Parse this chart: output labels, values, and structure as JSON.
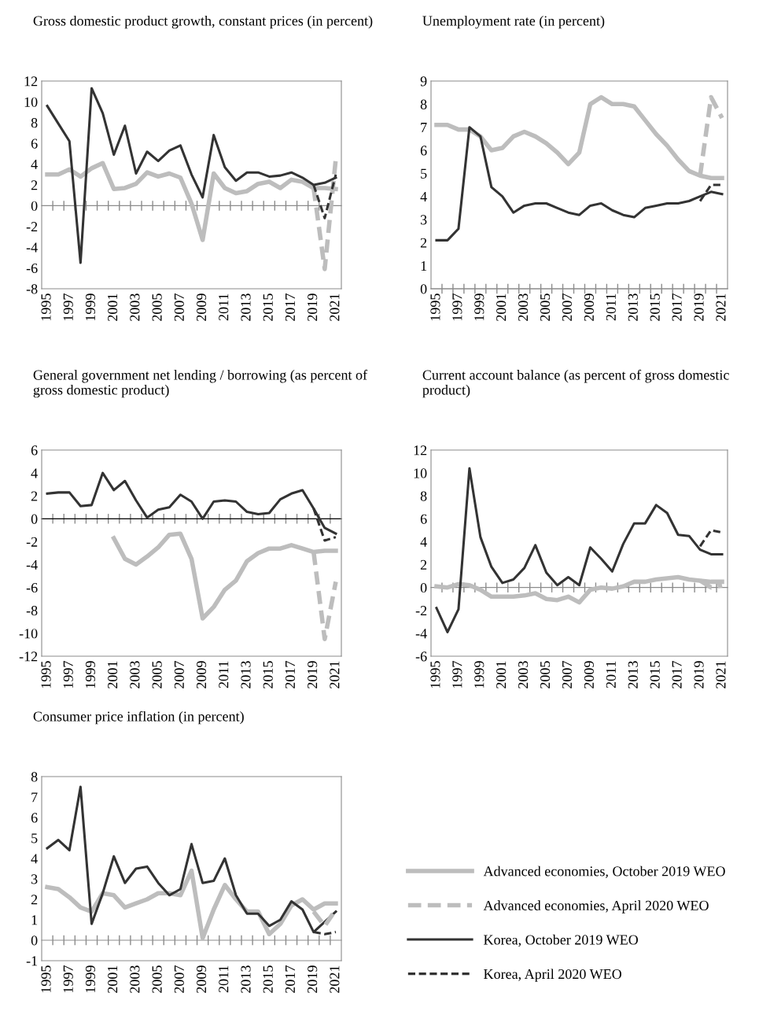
{
  "chart_data": [
    {
      "type": "line",
      "title": "Gross domestic product growth, constant prices (in percent)",
      "categories": [
        "1995",
        null,
        "1997",
        null,
        "1999",
        null,
        "2001",
        null,
        "2003",
        null,
        "2005",
        null,
        "2007",
        null,
        "2009",
        null,
        "2011",
        null,
        "2013",
        null,
        "2015",
        null,
        "2017",
        null,
        "2019",
        null,
        "2021"
      ],
      "ylim": [
        -8,
        12
      ],
      "yticks": [
        -8,
        -6,
        -4,
        -2,
        0,
        2,
        4,
        6,
        8,
        10,
        12
      ],
      "series": [
        {
          "color": "#bdbdbd",
          "line_style": "solid",
          "values": [
            3.0,
            3.0,
            3.5,
            2.8,
            3.6,
            4.1,
            1.6,
            1.7,
            2.1,
            3.2,
            2.8,
            3.1,
            2.7,
            0.2,
            -3.3,
            3.1,
            1.7,
            1.2,
            1.4,
            2.1,
            2.3,
            1.7,
            2.5,
            2.3,
            1.7,
            1.7,
            1.6
          ]
        },
        {
          "color": "#bdbdbd",
          "line_style": "dashed",
          "values": [
            null,
            null,
            null,
            null,
            null,
            null,
            null,
            null,
            null,
            null,
            null,
            null,
            null,
            null,
            null,
            null,
            null,
            null,
            null,
            null,
            null,
            null,
            null,
            null,
            1.7,
            -6.1,
            4.5
          ]
        },
        {
          "color": "#333333",
          "line_style": "solid",
          "values": [
            9.6,
            7.9,
            6.2,
            -5.5,
            11.3,
            8.9,
            4.9,
            7.7,
            3.1,
            5.2,
            4.3,
            5.3,
            5.8,
            3.0,
            0.8,
            6.8,
            3.7,
            2.4,
            3.2,
            3.2,
            2.8,
            2.9,
            3.2,
            2.7,
            2.0,
            2.2,
            2.7
          ]
        },
        {
          "color": "#333333",
          "line_style": "dashed",
          "values": [
            null,
            null,
            null,
            null,
            null,
            null,
            null,
            null,
            null,
            null,
            null,
            null,
            null,
            null,
            null,
            null,
            null,
            null,
            null,
            null,
            null,
            null,
            null,
            null,
            2.0,
            -1.2,
            3.0
          ]
        }
      ]
    },
    {
      "type": "line",
      "title": "Unemployment rate (in percent)",
      "categories": [
        "1995",
        null,
        "1997",
        null,
        "1999",
        null,
        "2001",
        null,
        "2003",
        null,
        "2005",
        null,
        "2007",
        null,
        "2009",
        null,
        "2011",
        null,
        "2013",
        null,
        "2015",
        null,
        "2017",
        null,
        "2019",
        null,
        "2021"
      ],
      "ylim": [
        0,
        9
      ],
      "yticks": [
        0,
        1,
        2,
        3,
        4,
        5,
        6,
        7,
        8,
        9
      ],
      "series": [
        {
          "color": "#bdbdbd",
          "line_style": "solid",
          "values": [
            7.1,
            7.1,
            6.9,
            6.9,
            6.6,
            6.0,
            6.1,
            6.6,
            6.8,
            6.6,
            6.3,
            5.9,
            5.4,
            5.9,
            8.0,
            8.3,
            8.0,
            8.0,
            7.9,
            7.3,
            6.7,
            6.2,
            5.6,
            5.1,
            4.9,
            4.8,
            4.8
          ]
        },
        {
          "color": "#bdbdbd",
          "line_style": "dashed",
          "values": [
            null,
            null,
            null,
            null,
            null,
            null,
            null,
            null,
            null,
            null,
            null,
            null,
            null,
            null,
            null,
            null,
            null,
            null,
            null,
            null,
            null,
            null,
            null,
            null,
            4.9,
            8.3,
            7.4
          ]
        },
        {
          "color": "#333333",
          "line_style": "solid",
          "values": [
            2.1,
            2.1,
            2.6,
            7.0,
            6.6,
            4.4,
            4.0,
            3.3,
            3.6,
            3.7,
            3.7,
            3.5,
            3.3,
            3.2,
            3.6,
            3.7,
            3.4,
            3.2,
            3.1,
            3.5,
            3.6,
            3.7,
            3.7,
            3.8,
            4.0,
            4.2,
            4.1
          ]
        },
        {
          "color": "#333333",
          "line_style": "dashed",
          "values": [
            null,
            null,
            null,
            null,
            null,
            null,
            null,
            null,
            null,
            null,
            null,
            null,
            null,
            null,
            null,
            null,
            null,
            null,
            null,
            null,
            null,
            null,
            null,
            null,
            3.8,
            4.5,
            4.5
          ]
        }
      ]
    },
    {
      "type": "line",
      "title": "General government net lending / borrowing (as percent of gross domestic product)",
      "categories": [
        "1995",
        null,
        "1997",
        null,
        "1999",
        null,
        "2001",
        null,
        "2003",
        null,
        "2005",
        null,
        "2007",
        null,
        "2009",
        null,
        "2011",
        null,
        "2013",
        null,
        "2015",
        null,
        "2017",
        null,
        "2019",
        null,
        "2021"
      ],
      "ylim": [
        -12,
        6
      ],
      "yticks": [
        -12,
        -10,
        -8,
        -6,
        -4,
        -2,
        0,
        2,
        4,
        6
      ],
      "series": [
        {
          "color": "#bdbdbd",
          "line_style": "solid",
          "values": [
            null,
            null,
            null,
            null,
            null,
            null,
            -1.7,
            -3.5,
            -4.0,
            -3.3,
            -2.5,
            -1.4,
            -1.3,
            -3.5,
            -8.7,
            -7.7,
            -6.2,
            -5.4,
            -3.7,
            -3.0,
            -2.6,
            -2.6,
            -2.3,
            -2.6,
            -2.9,
            -2.8,
            -2.8
          ]
        },
        {
          "color": "#bdbdbd",
          "line_style": "dashed",
          "values": [
            null,
            null,
            null,
            null,
            null,
            null,
            null,
            null,
            null,
            null,
            null,
            null,
            null,
            null,
            null,
            null,
            null,
            null,
            null,
            null,
            null,
            null,
            null,
            null,
            -2.9,
            -10.5,
            -5.5
          ]
        },
        {
          "color": "#333333",
          "line_style": "solid",
          "values": [
            2.2,
            2.3,
            2.3,
            1.1,
            1.2,
            4.0,
            2.5,
            3.3,
            1.6,
            0.1,
            0.8,
            1.0,
            2.1,
            1.5,
            0.0,
            1.5,
            1.6,
            1.5,
            0.6,
            0.4,
            0.5,
            1.7,
            2.2,
            2.5,
            0.9,
            -0.8,
            -1.3
          ]
        },
        {
          "color": "#333333",
          "line_style": "dashed",
          "values": [
            null,
            null,
            null,
            null,
            null,
            null,
            null,
            null,
            null,
            null,
            null,
            null,
            null,
            null,
            null,
            null,
            null,
            null,
            null,
            null,
            null,
            null,
            null,
            null,
            0.9,
            -1.9,
            -1.6
          ]
        }
      ]
    },
    {
      "type": "line",
      "title": "Current account balance (as percent of gross domestic product)",
      "categories": [
        "1995",
        null,
        "1997",
        null,
        "1999",
        null,
        "2001",
        null,
        "2003",
        null,
        "2005",
        null,
        "2007",
        null,
        "2009",
        null,
        "2011",
        null,
        "2013",
        null,
        "2015",
        null,
        "2017",
        null,
        "2019",
        null,
        "2021"
      ],
      "ylim": [
        -6,
        12
      ],
      "yticks": [
        -6,
        -4,
        -2,
        0,
        2,
        4,
        6,
        8,
        10,
        12
      ],
      "series": [
        {
          "color": "#bdbdbd",
          "line_style": "solid",
          "values": [
            0.1,
            0.0,
            0.3,
            0.2,
            -0.2,
            -0.8,
            -0.8,
            -0.8,
            -0.7,
            -0.5,
            -1.0,
            -1.1,
            -0.8,
            -1.3,
            -0.2,
            0.0,
            -0.1,
            0.1,
            0.5,
            0.5,
            0.7,
            0.8,
            0.9,
            0.7,
            0.6,
            0.5,
            0.5
          ]
        },
        {
          "color": "#bdbdbd",
          "line_style": "dashed",
          "values": [
            null,
            null,
            null,
            null,
            null,
            null,
            null,
            null,
            null,
            null,
            null,
            null,
            null,
            null,
            null,
            null,
            null,
            null,
            null,
            null,
            null,
            null,
            null,
            null,
            0.6,
            0.0,
            0.2
          ]
        },
        {
          "color": "#333333",
          "line_style": "solid",
          "values": [
            -1.8,
            -3.9,
            -1.9,
            10.4,
            4.4,
            1.8,
            0.4,
            0.7,
            1.7,
            3.7,
            1.3,
            0.2,
            0.9,
            0.2,
            3.5,
            2.5,
            1.4,
            3.8,
            5.6,
            5.6,
            7.2,
            6.5,
            4.6,
            4.5,
            3.3,
            2.9,
            2.9
          ]
        },
        {
          "color": "#333333",
          "line_style": "dashed",
          "values": [
            null,
            null,
            null,
            null,
            null,
            null,
            null,
            null,
            null,
            null,
            null,
            null,
            null,
            null,
            null,
            null,
            null,
            null,
            null,
            null,
            null,
            null,
            null,
            null,
            3.6,
            5.0,
            4.8
          ]
        }
      ]
    },
    {
      "type": "line",
      "title": "Consumer price inflation (in percent)",
      "categories": [
        "1995",
        null,
        "1997",
        null,
        "1999",
        null,
        "2001",
        null,
        "2003",
        null,
        "2005",
        null,
        "2007",
        null,
        "2009",
        null,
        "2011",
        null,
        "2013",
        null,
        "2015",
        null,
        "2017",
        null,
        "2019",
        null,
        "2021"
      ],
      "ylim": [
        -1,
        8
      ],
      "yticks": [
        -1,
        0,
        1,
        2,
        3,
        4,
        5,
        6,
        7,
        8
      ],
      "legend": "right",
      "series": [
        {
          "name": "Advanced economies, October 2019 WEO",
          "color": "#bdbdbd",
          "line_style": "solid",
          "values": [
            2.6,
            2.5,
            2.1,
            1.6,
            1.4,
            2.3,
            2.2,
            1.6,
            1.8,
            2.0,
            2.3,
            2.3,
            2.2,
            3.4,
            0.1,
            1.5,
            2.7,
            2.0,
            1.4,
            1.4,
            0.3,
            0.8,
            1.7,
            2.0,
            1.5,
            1.8,
            1.8
          ]
        },
        {
          "name": "Advanced economies, April 2020 WEO",
          "color": "#bdbdbd",
          "line_style": "dashed",
          "values": [
            null,
            null,
            null,
            null,
            null,
            null,
            null,
            null,
            null,
            null,
            null,
            null,
            null,
            null,
            null,
            null,
            null,
            null,
            null,
            null,
            null,
            null,
            null,
            null,
            1.4,
            0.7,
            1.5
          ]
        },
        {
          "name": "Korea, October 2019 WEO",
          "color": "#333333",
          "line_style": "solid",
          "values": [
            4.5,
            4.9,
            4.4,
            7.5,
            0.8,
            2.3,
            4.1,
            2.8,
            3.5,
            3.6,
            2.8,
            2.2,
            2.5,
            4.7,
            2.8,
            2.9,
            4.0,
            2.2,
            1.3,
            1.3,
            0.7,
            1.0,
            1.9,
            1.5,
            0.4,
            0.9,
            1.4
          ]
        },
        {
          "name": "Korea, April 2020 WEO",
          "color": "#333333",
          "line_style": "dashed",
          "values": [
            null,
            null,
            null,
            null,
            null,
            null,
            null,
            null,
            null,
            null,
            null,
            null,
            null,
            null,
            null,
            null,
            null,
            null,
            null,
            null,
            null,
            null,
            null,
            null,
            0.4,
            0.3,
            0.4
          ]
        }
      ]
    }
  ]
}
